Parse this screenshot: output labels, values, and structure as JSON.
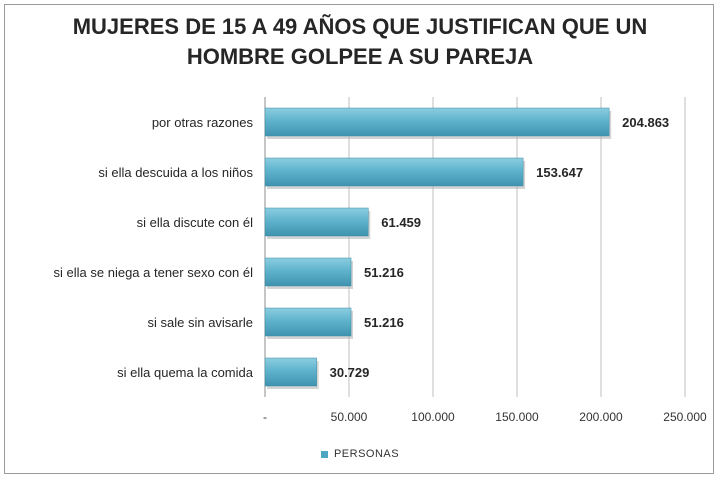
{
  "chart_data": {
    "type": "bar",
    "orientation": "horizontal",
    "title_lines": [
      "MUJERES DE 15 A 49 AÑOS QUE JUSTIFICAN QUE UN",
      "HOMBRE GOLPEE A SU PAREJA"
    ],
    "categories": [
      "por otras razones",
      "si ella descuida a los niños",
      "si ella discute con él",
      "si ella se niega a tener sexo con él",
      "si sale sin avisarle",
      "si ella quema la comida"
    ],
    "series": [
      {
        "name": "PERSONAS",
        "values": [
          204863,
          153647,
          61459,
          51216,
          51216,
          30729
        ],
        "labels": [
          "204.863",
          "153.647",
          "61.459",
          "51.216",
          "51.216",
          "30.729"
        ]
      }
    ],
    "xlim": [
      0,
      250000
    ],
    "xticks": [
      0,
      50000,
      100000,
      150000,
      200000,
      250000
    ],
    "xtick_labels": [
      "-",
      "50.000",
      "100.000",
      "150.000",
      "200.000",
      "250.000"
    ],
    "grid": true,
    "legend_position": "bottom",
    "bar_color": "#4fa6c2"
  }
}
